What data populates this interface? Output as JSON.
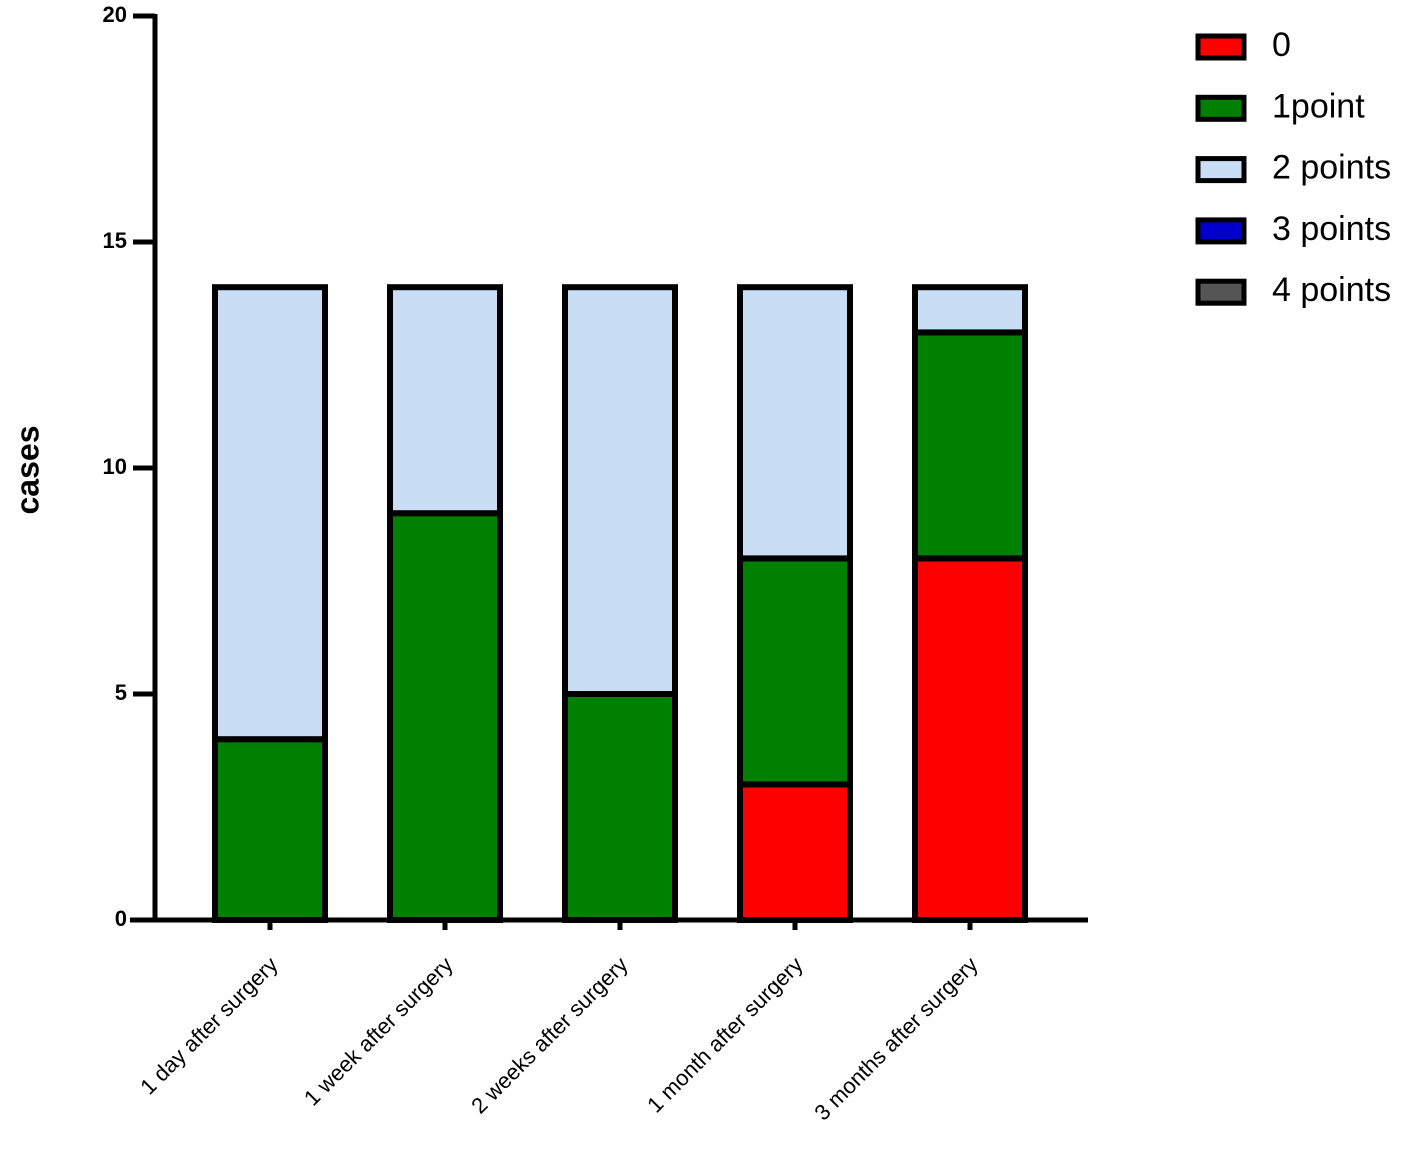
{
  "chart_data": {
    "type": "stacked_bar",
    "y_label": "cases",
    "categories": [
      "1 day after surgery",
      "1 week after surgery",
      "2 weeks after surgery",
      "1 month after surgery",
      "3 months after surgery"
    ],
    "series": [
      {
        "name": "0",
        "color": "#ff0000",
        "values": [
          0,
          0,
          0,
          3,
          8
        ]
      },
      {
        "name": "1point",
        "color": "#008000",
        "values": [
          4,
          9,
          5,
          5,
          5
        ]
      },
      {
        "name": "2 points",
        "color": "#c9ddf5",
        "values": [
          10,
          5,
          9,
          6,
          1
        ]
      },
      {
        "name": "3 points",
        "color": "#0000cc",
        "values": [
          0,
          0,
          0,
          0,
          0
        ]
      },
      {
        "name": "4 points",
        "color": "#555555",
        "values": [
          0,
          0,
          0,
          0,
          0
        ]
      }
    ],
    "ylim": [
      0,
      20
    ],
    "yticks": [
      0,
      5,
      10,
      15,
      20
    ],
    "legend": "top-right"
  }
}
